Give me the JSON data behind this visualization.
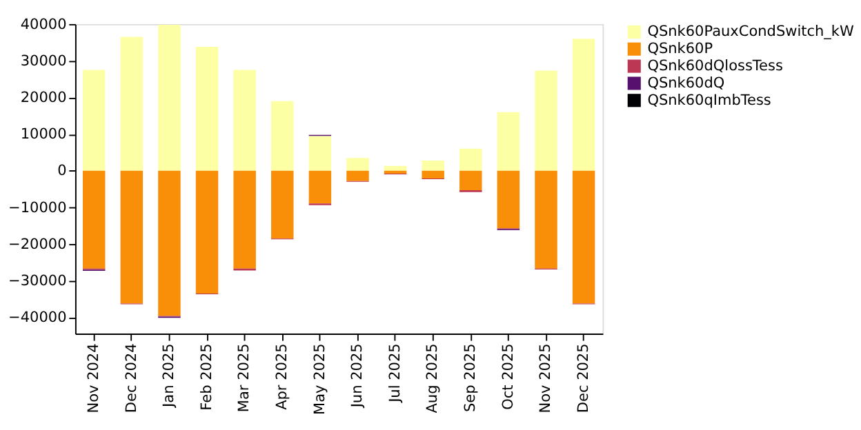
{
  "chart_data": {
    "type": "bar",
    "stacked": true,
    "legend": "right",
    "grid": false,
    "categories": [
      "Nov 2024",
      "Dec 2024",
      "Jan 2025",
      "Feb 2025",
      "Mar 2025",
      "Apr 2025",
      "May 2025",
      "Jun 2025",
      "Jul 2025",
      "Aug 2025",
      "Sep 2025",
      "Oct 2025",
      "Nov 2025",
      "Dec 2025"
    ],
    "ylim": [
      -44400,
      40000
    ],
    "yticks": [
      {
        "value": -40000,
        "label": "−40000"
      },
      {
        "value": -30000,
        "label": "−30000"
      },
      {
        "value": -20000,
        "label": "−20000"
      },
      {
        "value": -10000,
        "label": "−10000"
      },
      0,
      10000,
      20000,
      30000,
      40000
    ],
    "series": [
      {
        "name": "QSnk60PauxCondSwitch_kW",
        "color": "#fcffa4",
        "values": [
          27500,
          36500,
          39800,
          33800,
          27500,
          19000,
          9500,
          3500,
          1300,
          2800,
          6000,
          16000,
          27300,
          36000
        ]
      },
      {
        "name": "QSnk60P",
        "color": "#f98e09",
        "values": [
          -26700,
          -36200,
          -39600,
          -33500,
          -26700,
          -18500,
          -8900,
          -2800,
          -800,
          -2100,
          -5300,
          -15700,
          -26700,
          -36200
        ]
      },
      {
        "name": "QSnk60dQlossTess",
        "color": "#bc3754",
        "values": [
          -300,
          -200,
          -200,
          -200,
          -500,
          -200,
          -500,
          -200,
          -200,
          -200,
          -500,
          -200,
          -200,
          -200
        ]
      },
      {
        "name": "QSnk60dQ",
        "color": "#57106e",
        "values": [
          -300,
          0,
          -300,
          0,
          0,
          0,
          300,
          0,
          0,
          0,
          0,
          -300,
          0,
          0
        ]
      },
      {
        "name": "QSnk60qImbTess",
        "color": "#000004",
        "values": [
          0,
          0,
          0,
          0,
          0,
          0,
          0,
          0,
          0,
          0,
          0,
          0,
          0,
          0
        ]
      }
    ]
  }
}
